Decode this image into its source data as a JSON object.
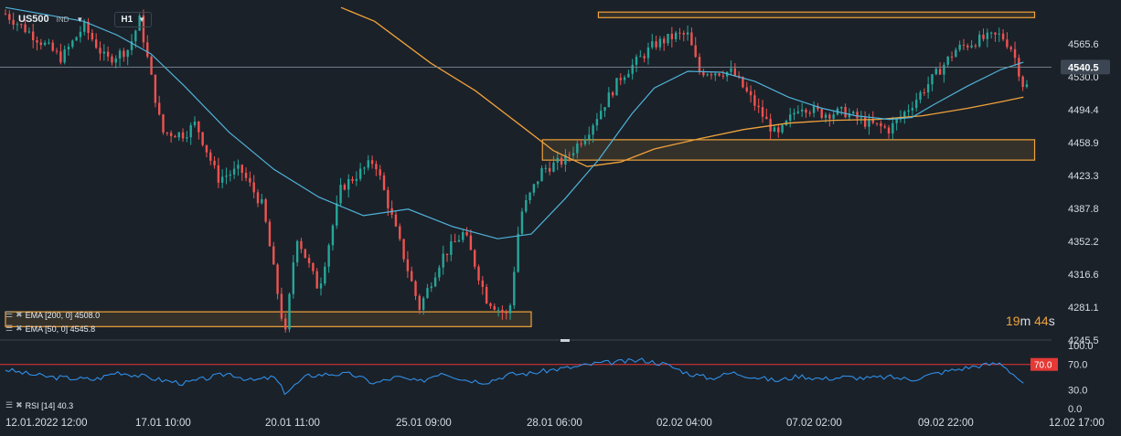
{
  "header": {
    "symbol": "US500",
    "market": "IND",
    "timeframe": "H1"
  },
  "indicators": {
    "ema200": "EMA [200, 0]  4508.0",
    "ema50": "EMA [50, 0]  4545.8",
    "rsi": "RSI [14]  40.3"
  },
  "countdown": {
    "minutes": "19",
    "m": "m",
    "seconds": "44",
    "s": "s"
  },
  "colors": {
    "background": "#1b2129",
    "up": "#26a69a",
    "down": "#ef5350",
    "ema50": "#4fb3d9",
    "ema200": "#f0a23b",
    "zone": "#f0a23b",
    "rsi": "#2f8fe8",
    "rsi_level": "#e53935"
  },
  "chart_data": [
    {
      "type": "candlestick",
      "title": "US500",
      "xlabel": "",
      "ylabel": "",
      "x_ticks": [
        "12.01.2022 12:00",
        "17.01 10:00",
        "20.01 11:00",
        "25.01 09:00",
        "28.01 06:00",
        "02.02 04:00",
        "07.02 02:00",
        "09.02 22:00",
        "12.02 17:00"
      ],
      "y_ticks": [
        4565.6,
        4530.0,
        4494.4,
        4458.9,
        4423.3,
        4387.8,
        4352.2,
        4316.6,
        4281.1,
        4245.5
      ],
      "ylim": [
        4245.5,
        4601.2
      ],
      "last_price": 4540.5,
      "price_path": [
        [
          0,
          4598
        ],
        [
          3,
          4570
        ],
        [
          5,
          4550
        ],
        [
          7,
          4585
        ],
        [
          9,
          4548
        ],
        [
          11,
          4560
        ],
        [
          12,
          4592
        ],
        [
          14,
          4470
        ],
        [
          16,
          4468
        ],
        [
          17,
          4480
        ],
        [
          19,
          4420
        ],
        [
          21,
          4430
        ],
        [
          23,
          4390
        ],
        [
          25,
          4249
        ],
        [
          26,
          4360
        ],
        [
          28,
          4300
        ],
        [
          30,
          4410
        ],
        [
          33,
          4440
        ],
        [
          35,
          4360
        ],
        [
          37,
          4280
        ],
        [
          39,
          4335
        ],
        [
          41,
          4362
        ],
        [
          43,
          4290
        ],
        [
          45,
          4270
        ],
        [
          46,
          4380
        ],
        [
          48,
          4430
        ],
        [
          50,
          4440
        ],
        [
          52,
          4470
        ],
        [
          55,
          4530
        ],
        [
          58,
          4565
        ],
        [
          60,
          4575
        ],
        [
          61,
          4575
        ],
        [
          62,
          4536
        ],
        [
          65,
          4535
        ],
        [
          67,
          4500
        ],
        [
          69,
          4465
        ],
        [
          71,
          4500
        ],
        [
          73,
          4490
        ],
        [
          75,
          4492
        ],
        [
          77,
          4480
        ],
        [
          79,
          4473
        ],
        [
          81,
          4500
        ],
        [
          83,
          4530
        ],
        [
          85,
          4560
        ],
        [
          87,
          4570
        ],
        [
          89,
          4575
        ],
        [
          90,
          4560
        ],
        [
          91,
          4520
        ]
      ],
      "ema50_path": [
        [
          0,
          4605
        ],
        [
          7,
          4590
        ],
        [
          10,
          4575
        ],
        [
          13,
          4555
        ],
        [
          16,
          4520
        ],
        [
          20,
          4470
        ],
        [
          24,
          4430
        ],
        [
          28,
          4400
        ],
        [
          32,
          4380
        ],
        [
          36,
          4387
        ],
        [
          40,
          4368
        ],
        [
          44,
          4355
        ],
        [
          47,
          4360
        ],
        [
          50,
          4398
        ],
        [
          53,
          4440
        ],
        [
          56,
          4490
        ],
        [
          58,
          4518
        ],
        [
          61,
          4536
        ],
        [
          64,
          4535
        ],
        [
          67,
          4525
        ],
        [
          70,
          4508
        ],
        [
          73,
          4496
        ],
        [
          76,
          4488
        ],
        [
          79,
          4484
        ],
        [
          81,
          4486
        ],
        [
          83,
          4500
        ],
        [
          86,
          4520
        ],
        [
          89,
          4538
        ],
        [
          91,
          4545.8
        ]
      ],
      "ema200_path": [
        [
          30,
          4605
        ],
        [
          33,
          4590
        ],
        [
          38,
          4545
        ],
        [
          42,
          4515
        ],
        [
          46,
          4478
        ],
        [
          49,
          4450
        ],
        [
          52,
          4433
        ],
        [
          55,
          4438
        ],
        [
          58,
          4452
        ],
        [
          62,
          4463
        ],
        [
          66,
          4473
        ],
        [
          70,
          4480
        ],
        [
          74,
          4483
        ],
        [
          78,
          4484
        ],
        [
          82,
          4488
        ],
        [
          86,
          4496
        ],
        [
          89,
          4503
        ],
        [
          91,
          4508
        ]
      ],
      "zones": [
        {
          "x0": 53,
          "x1": 92,
          "y0": 4594,
          "y1": 4600
        },
        {
          "x0": 48,
          "x1": 92,
          "y0": 4440,
          "y1": 4462
        },
        {
          "x0": 0,
          "x1": 47,
          "y0": 4260,
          "y1": 4276
        }
      ]
    },
    {
      "type": "line",
      "title": "RSI [14]",
      "y_ticks": [
        100.0,
        70.0,
        30.0,
        0.0
      ],
      "ylim": [
        0,
        100
      ],
      "level": 70.0,
      "last_value": 40.3,
      "series": [
        {
          "name": "RSI [14]",
          "x": [
            0,
            2,
            4,
            6,
            8,
            10,
            12,
            14,
            16,
            18,
            20,
            22,
            24,
            25,
            27,
            29,
            31,
            33,
            35,
            37,
            39,
            41,
            43,
            45,
            47,
            49,
            51,
            53,
            55,
            57,
            59,
            61,
            63,
            65,
            67,
            69,
            71,
            73,
            75,
            77,
            79,
            81,
            83,
            85,
            87,
            89,
            91
          ],
          "values": [
            62,
            55,
            50,
            48,
            46,
            58,
            52,
            45,
            40,
            48,
            56,
            44,
            50,
            25,
            52,
            55,
            54,
            40,
            50,
            42,
            58,
            46,
            42,
            54,
            56,
            62,
            66,
            72,
            74,
            77,
            70,
            56,
            48,
            57,
            50,
            44,
            52,
            47,
            50,
            48,
            50,
            46,
            55,
            62,
            68,
            72,
            40.3
          ]
        }
      ]
    }
  ]
}
